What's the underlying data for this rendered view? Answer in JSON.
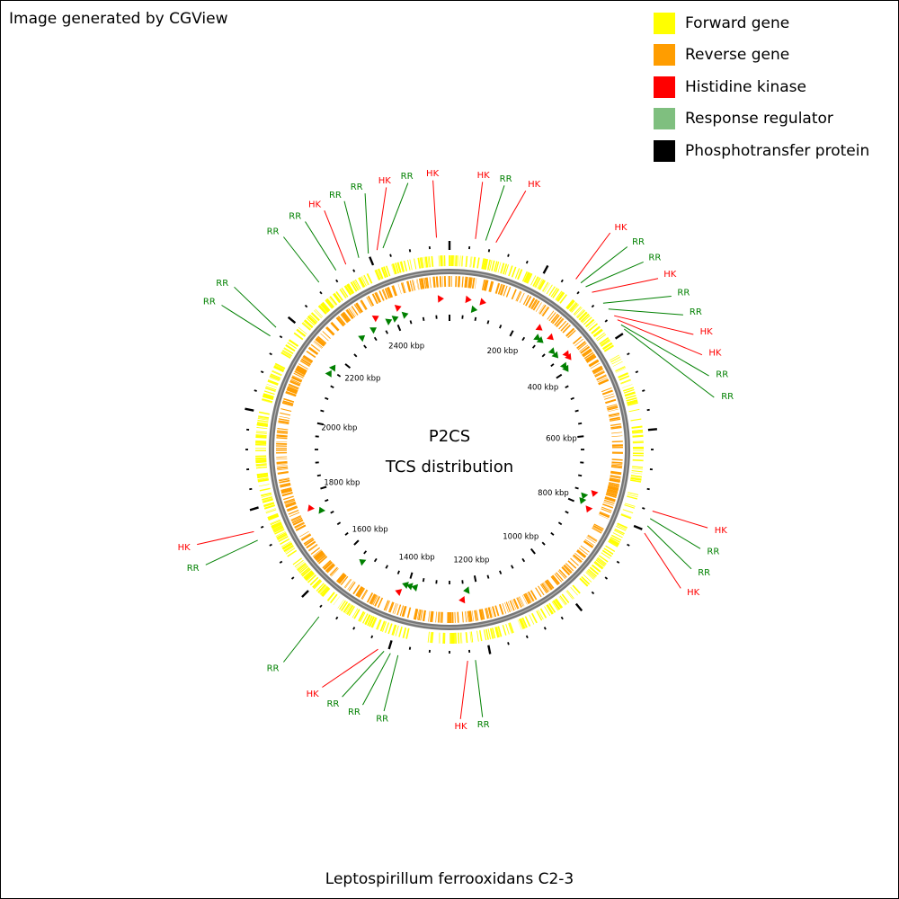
{
  "credit": "Image generated by CGView",
  "legend": [
    {
      "label": "Forward gene",
      "color": "#ffff00"
    },
    {
      "label": "Reverse gene",
      "color": "#ff9d00"
    },
    {
      "label": "Histidine kinase",
      "color": "#ff0000"
    },
    {
      "label": "Response regulator",
      "color": "#7fbf7f"
    },
    {
      "label": "Phosphotransfer protein",
      "color": "#000000"
    }
  ],
  "center_title": "P2CS",
  "center_subtitle": "TCS distribution",
  "organism": "Leptospirillum ferrooxidans C2-3",
  "genome_length_kbp": 2560,
  "ruler_labels": [
    "200 kbp",
    "400 kbp",
    "600 kbp",
    "800 kbp",
    "1000 kbp",
    "1200 kbp",
    "1400 kbp",
    "1600 kbp",
    "1800 kbp",
    "2000 kbp",
    "2200 kbp",
    "2400 kbp"
  ],
  "colors": {
    "hk": "#ff0000",
    "rr": "#008000",
    "backbone": "#777777",
    "forward": "#ffff00",
    "reverse": "#ff9d00",
    "tick": "#000000"
  },
  "features": [
    {
      "kbp": 50,
      "type": "HK"
    },
    {
      "kbp": 70,
      "type": "RR"
    },
    {
      "kbp": 90,
      "type": "HK"
    },
    {
      "kbp": 260,
      "type": "HK"
    },
    {
      "kbp": 272,
      "type": "RR"
    },
    {
      "kbp": 284,
      "type": "RR"
    },
    {
      "kbp": 300,
      "type": "HK"
    },
    {
      "kbp": 330,
      "type": "RR"
    },
    {
      "kbp": 345,
      "type": "RR"
    },
    {
      "kbp": 362,
      "type": "HK"
    },
    {
      "kbp": 372,
      "type": "HK"
    },
    {
      "kbp": 384,
      "type": "RR"
    },
    {
      "kbp": 394,
      "type": "RR"
    },
    {
      "kbp": 760,
      "type": "HK"
    },
    {
      "kbp": 775,
      "type": "RR"
    },
    {
      "kbp": 790,
      "type": "RR"
    },
    {
      "kbp": 805,
      "type": "HK"
    },
    {
      "kbp": 1230,
      "type": "RR"
    },
    {
      "kbp": 1245,
      "type": "HK"
    },
    {
      "kbp": 1380,
      "type": "RR"
    },
    {
      "kbp": 1395,
      "type": "RR"
    },
    {
      "kbp": 1408,
      "type": "RR"
    },
    {
      "kbp": 1420,
      "type": "HK"
    },
    {
      "kbp": 1550,
      "type": "RR"
    },
    {
      "kbp": 1740,
      "type": "RR"
    },
    {
      "kbp": 1758,
      "type": "HK"
    },
    {
      "kbp": 2150,
      "type": "RR"
    },
    {
      "kbp": 2170,
      "type": "RR"
    },
    {
      "kbp": 2290,
      "type": "RR"
    },
    {
      "kbp": 2330,
      "type": "RR"
    },
    {
      "kbp": 2352,
      "type": "HK"
    },
    {
      "kbp": 2380,
      "type": "RR"
    },
    {
      "kbp": 2400,
      "type": "RR"
    },
    {
      "kbp": 2418,
      "type": "HK"
    },
    {
      "kbp": 2430,
      "type": "RR"
    },
    {
      "kbp": 2535,
      "type": "HK"
    }
  ]
}
